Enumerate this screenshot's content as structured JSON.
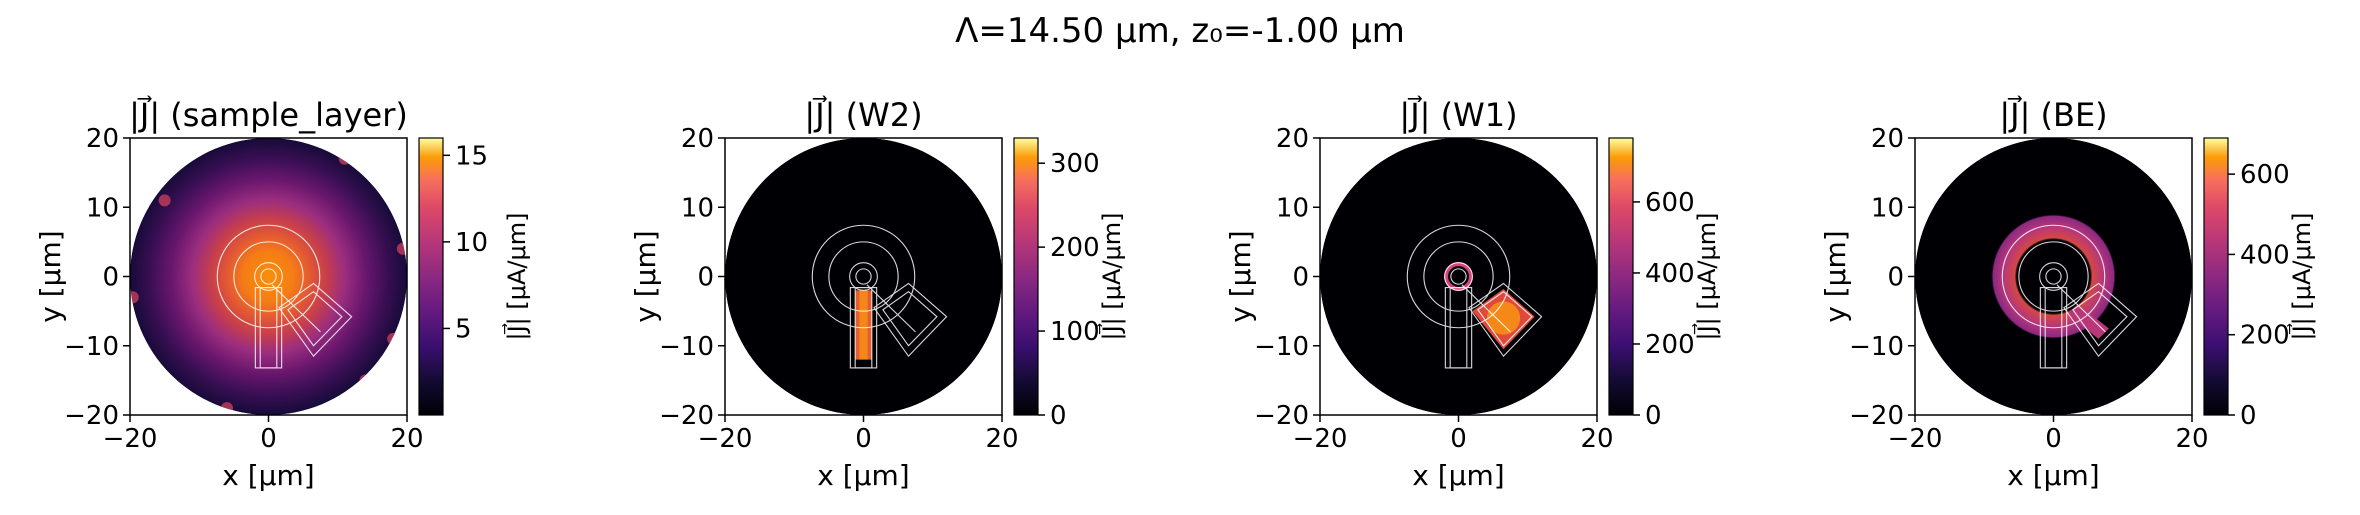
{
  "suptitle": "Λ=14.50 μm, z₀=-1.00 μm",
  "chart_data": [
    {
      "type": "heatmap",
      "title": "|J⃗| (sample_layer)",
      "xlabel": "x [μm]",
      "ylabel": "y [μm]",
      "xlim": [
        -20,
        20
      ],
      "ylim": [
        -20,
        20
      ],
      "xticks": [
        "−20",
        "0",
        "20"
      ],
      "yticks": [
        "20",
        "10",
        "0",
        "−10",
        "−20"
      ],
      "colorbar_label": "|J⃗| [μA/μm]",
      "colorbar_range": [
        0,
        16
      ],
      "colorbar_ticks": [
        {
          "label": "15",
          "value": 15
        },
        {
          "label": "10",
          "value": 10
        },
        {
          "label": "5",
          "value": 5
        }
      ],
      "colormap": "inferno",
      "highlight": "sample"
    },
    {
      "type": "heatmap",
      "title": "|J⃗| (W2)",
      "xlabel": "x [μm]",
      "ylabel": "y [μm]",
      "xlim": [
        -20,
        20
      ],
      "ylim": [
        -20,
        20
      ],
      "xticks": [
        "−20",
        "0",
        "20"
      ],
      "yticks": [
        "20",
        "10",
        "0",
        "−10",
        "−20"
      ],
      "colorbar_label": "|J⃗| [μA/μm]",
      "colorbar_range": [
        0,
        330
      ],
      "colorbar_ticks": [
        {
          "label": "300",
          "value": 300
        },
        {
          "label": "200",
          "value": 200
        },
        {
          "label": "100",
          "value": 100
        },
        {
          "label": "0",
          "value": 0
        }
      ],
      "colormap": "inferno",
      "highlight": "w2"
    },
    {
      "type": "heatmap",
      "title": "|J⃗| (W1)",
      "xlabel": "x [μm]",
      "ylabel": "y [μm]",
      "xlim": [
        -20,
        20
      ],
      "ylim": [
        -20,
        20
      ],
      "xticks": [
        "−20",
        "0",
        "20"
      ],
      "yticks": [
        "20",
        "10",
        "0",
        "−10",
        "−20"
      ],
      "colorbar_label": "|J⃗| [μA/μm]",
      "colorbar_range": [
        0,
        780
      ],
      "colorbar_ticks": [
        {
          "label": "600",
          "value": 600
        },
        {
          "label": "400",
          "value": 400
        },
        {
          "label": "200",
          "value": 200
        },
        {
          "label": "0",
          "value": 0
        }
      ],
      "colormap": "inferno",
      "highlight": "w1"
    },
    {
      "type": "heatmap",
      "title": "|J⃗| (BE)",
      "xlabel": "x [μm]",
      "ylabel": "y [μm]",
      "xlim": [
        -20,
        20
      ],
      "ylim": [
        -20,
        20
      ],
      "xticks": [
        "−20",
        "0",
        "20"
      ],
      "yticks": [
        "20",
        "10",
        "0",
        "−10",
        "−20"
      ],
      "colorbar_label": "|J⃗| [μA/μm]",
      "colorbar_range": [
        0,
        690
      ],
      "colorbar_ticks": [
        {
          "label": "600",
          "value": 600
        },
        {
          "label": "400",
          "value": 400
        },
        {
          "label": "200",
          "value": 200
        },
        {
          "label": "0",
          "value": 0
        }
      ],
      "colormap": "inferno",
      "highlight": "be"
    }
  ]
}
